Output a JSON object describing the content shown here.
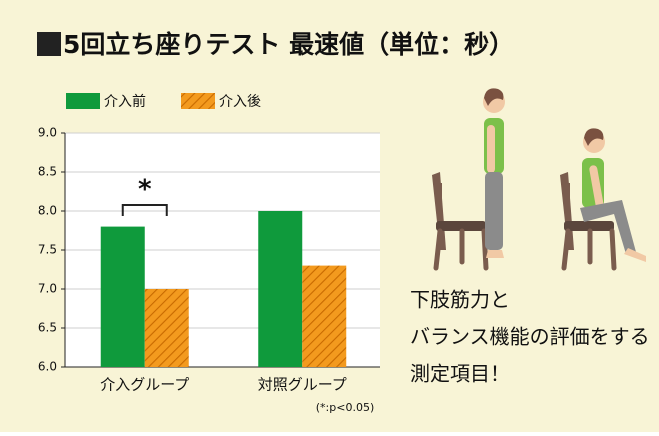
{
  "chart_data": {
    "type": "bar",
    "title": "5回立ち座りテスト 最速値（単位：秒）",
    "categories": [
      "介入グループ",
      "対照グループ"
    ],
    "series": [
      {
        "name": "介入前",
        "color": "#0f9a3c",
        "hatch": false,
        "values": [
          7.8,
          8.0
        ]
      },
      {
        "name": "介入後",
        "color": "#f39a1e",
        "hatch": true,
        "values": [
          7.0,
          7.3
        ]
      }
    ],
    "ylim": [
      6,
      9
    ],
    "yticks": [
      {
        "value": 6,
        "label": "6.0"
      },
      {
        "value": 6.5,
        "label": "6.5"
      },
      {
        "value": 7,
        "label": "7.0"
      },
      {
        "value": 7.5,
        "label": "7.5"
      },
      {
        "value": 8,
        "label": "8.0"
      },
      {
        "value": 8.5,
        "label": "8.5"
      },
      {
        "value": 9,
        "label": "9.0"
      }
    ],
    "grid": true,
    "annotation": "*",
    "note": "(*:p<0.05)",
    "side_text": [
      "下肢筋力と",
      "バランス機能の評価をする",
      "測定項目！"
    ]
  }
}
